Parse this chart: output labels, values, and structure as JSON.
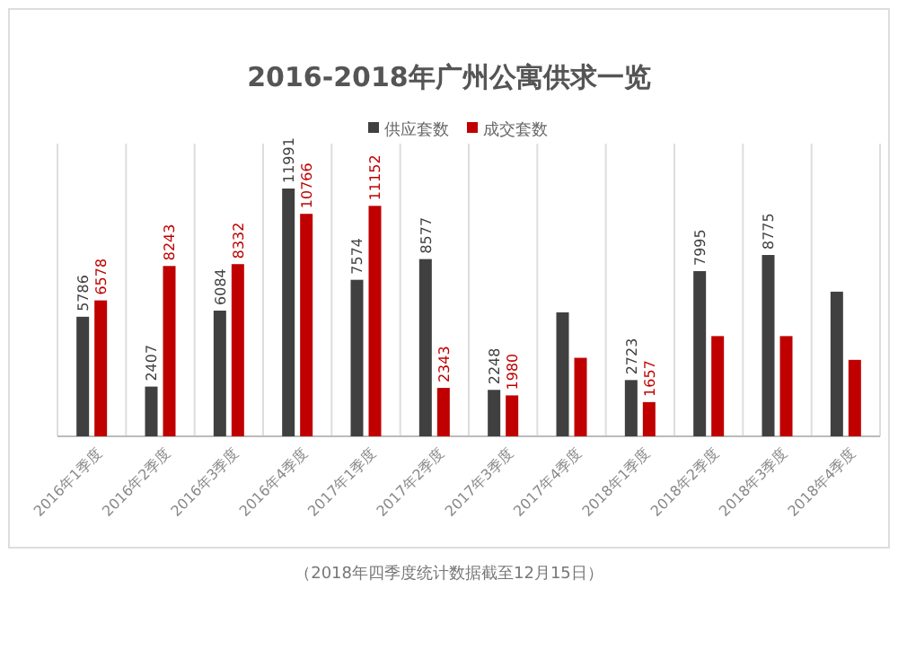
{
  "chart_data": {
    "type": "bar",
    "title": "2016-2018年广州公寓供求一览",
    "categories": [
      "2016年1季度",
      "2016年2季度",
      "2016年3季度",
      "2016年4季度",
      "2017年1季度",
      "2017年2季度",
      "2017年3季度",
      "2017年4季度",
      "2018年1季度",
      "2018年2季度",
      "2018年3季度",
      "2018年4季度"
    ],
    "series": [
      {
        "name": "供应套数",
        "color": "#404040",
        "values": [
          5786,
          2407,
          6084,
          11991,
          7574,
          8577,
          2248,
          6000,
          2723,
          7995,
          8775,
          7000
        ],
        "value_labels": [
          "5786",
          "2407",
          "6084",
          "11991",
          "7574",
          "8577",
          "2248",
          null,
          "2723",
          "7995",
          "8775",
          null
        ]
      },
      {
        "name": "成交套数",
        "color": "#c00000",
        "values": [
          6578,
          8243,
          8332,
          10766,
          11152,
          2343,
          1980,
          3800,
          1657,
          4850,
          4850,
          3700
        ],
        "value_labels": [
          "6578",
          "8243",
          "8332",
          "10766",
          "11152",
          "2343",
          "1980",
          null,
          "1657",
          null,
          null,
          null
        ]
      }
    ],
    "relative": false,
    "legend": "top",
    "grid": "x",
    "annotations": [
      "（2018年四季度统计数据截至12月15日）"
    ]
  }
}
